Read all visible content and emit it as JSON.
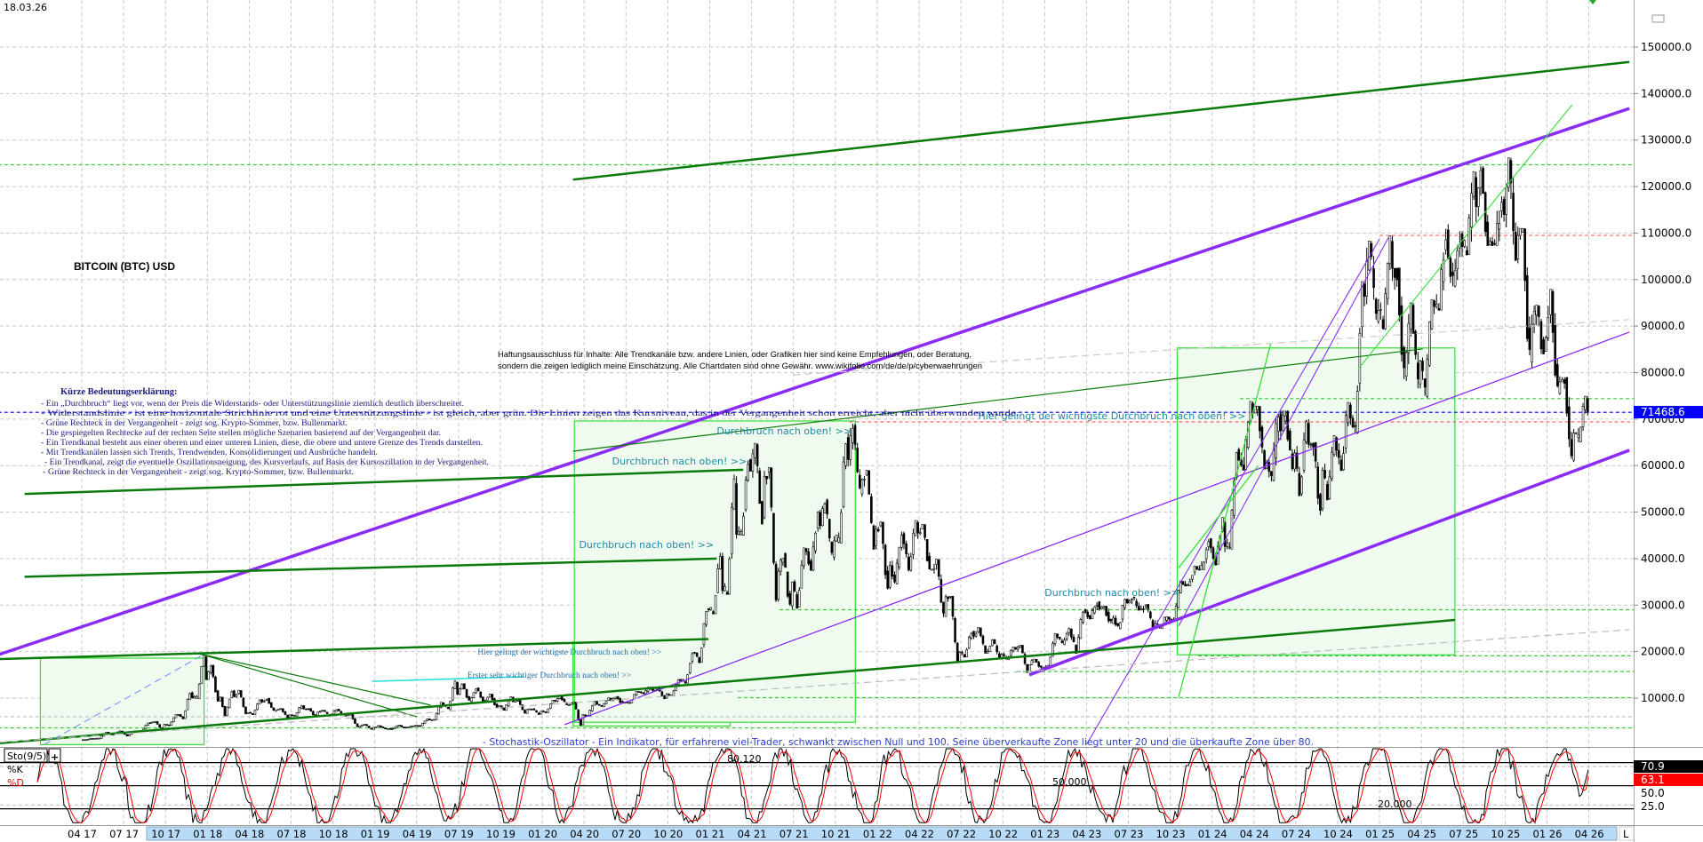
{
  "header": {
    "date": "18.03.26",
    "instrument_title": "BITCOIN (BTC) USD"
  },
  "legend": {
    "title": "Kürze Bedeutungserklärung:",
    "lines": [
      "- Ein „Durchbruch“ liegt vor, wenn der Preis die Widerstands- oder Unterstützungslinie ziemlich deutlich überschreitet.",
      "- Widerstandslinie - ist eine horizontale Strichlinie rot und eine Unterstützungslinie - ist gleich, aber grün. Die Linien zeigen das Kursniveau, das in der Vergangenheit schon erreicht, aber nicht überwunden wurde.",
      "- Grüne Rechteck in der Vergangenheit - zeigt sog. Krypto-Sommer, bzw. Bullenmarkt.",
      "- Die gespiegelten Rechtecke auf der rechten Seite stellen mögliche Szenarien basierend auf der Vergangenheit dar.",
      "- Ein Trendkanal besteht aus einer oberen und einer unteren Linien, diese, die obere und untere Grenze des Trends darstellen.",
      "- Mit Trendkanälen lassen sich Trends, Trendwenden, Konsolidierungen und Ausbrüche handeln.",
      "- Ein Trendkanal, zeigt die eventuelle Oszillationsneigung, des Kursverlaufs, auf Basis der Kursoszillation in der Vergangenheit.",
      "- Grüne Rechteck in der Vergangenheit - zeigt sog. Krypto-Sommer, bzw. Bullenmarkt."
    ]
  },
  "disclaimer": {
    "line1": "Haftungsausschluss für Inhalte: Alle Trendkanäle bzw. andere Linien, oder Grafiken hier sind keine Empfehlungen, oder Beratung,",
    "line2": "sondern die zeigen lediglich meine Einschätzung. Alle Chartdaten sind ohne Gewähr. www.wikifolio.com/de/de/p/cyberwaehrungen"
  },
  "stochastic": {
    "label": "Sto(9/5)",
    "add_button": "+",
    "k_label": "%K",
    "d_label": "%D",
    "description": "- Stochastik-Oszillator - Ein Indikator, für erfahrene viel-Trader, schwankt zwischen Null und 100. Seine überverkaufte Zone liegt unter 20 und die überkaufte Zone über 80.",
    "k_value": "70.9",
    "d_value": "63.1",
    "k_color": "#000000",
    "d_color": "#ff0000",
    "level_labels": [
      "80.120",
      "50.000",
      "20.000"
    ],
    "axis_labels": [
      "50.0",
      "25.0"
    ],
    "levels": [
      80,
      50,
      20
    ]
  },
  "axis": {
    "l_button": "L",
    "current_price": "71468.6",
    "current_price_color": "#0000ff"
  },
  "chart_data": {
    "type": "candlestick",
    "title": "BITCOIN (BTC) USD",
    "ylim": [
      0,
      150000
    ],
    "y_ticks": [
      "10000.0",
      "20000.0",
      "30000.0",
      "40000.0",
      "50000.0",
      "60000.0",
      "70000.0",
      "80000.0",
      "90000.0",
      "100000.0",
      "110000.0",
      "120000.0",
      "130000.0",
      "140000.0",
      "150000.0"
    ],
    "x_ticks": [
      "04 17",
      "07 17",
      "10 17",
      "01 18",
      "04 18",
      "07 18",
      "10 18",
      "01 19",
      "04 19",
      "07 19",
      "10 19",
      "01 20",
      "04 20",
      "07 20",
      "10 20",
      "01 21",
      "04 21",
      "07 21",
      "10 21",
      "01 22",
      "04 22",
      "07 22",
      "10 22",
      "01 23",
      "04 23",
      "07 23",
      "10 23",
      "01 24",
      "04 24",
      "07 24",
      "10 24",
      "01 25",
      "04 25",
      "07 25",
      "10 25",
      "01 26",
      "04 26"
    ],
    "grid": true,
    "candle_up_color": "#ffffff",
    "candle_down_color": "#000000",
    "months": [
      "2017-04",
      "2017-05",
      "2017-06",
      "2017-07",
      "2017-08",
      "2017-09",
      "2017-10",
      "2017-11",
      "2017-12",
      "2018-01",
      "2018-02",
      "2018-03",
      "2018-04",
      "2018-05",
      "2018-06",
      "2018-07",
      "2018-08",
      "2018-09",
      "2018-10",
      "2018-11",
      "2018-12",
      "2019-01",
      "2019-02",
      "2019-03",
      "2019-04",
      "2019-05",
      "2019-06",
      "2019-07",
      "2019-08",
      "2019-09",
      "2019-10",
      "2019-11",
      "2019-12",
      "2020-01",
      "2020-02",
      "2020-03",
      "2020-04",
      "2020-05",
      "2020-06",
      "2020-07",
      "2020-08",
      "2020-09",
      "2020-10",
      "2020-11",
      "2020-12",
      "2021-01",
      "2021-02",
      "2021-03",
      "2021-04",
      "2021-05",
      "2021-06",
      "2021-07",
      "2021-08",
      "2021-09",
      "2021-10",
      "2021-11",
      "2021-12",
      "2022-01",
      "2022-02",
      "2022-03",
      "2022-04",
      "2022-05",
      "2022-06",
      "2022-07",
      "2022-08",
      "2022-09",
      "2022-10",
      "2022-11",
      "2022-12",
      "2023-01",
      "2023-02",
      "2023-03",
      "2023-04",
      "2023-05",
      "2023-06",
      "2023-07",
      "2023-08",
      "2023-09",
      "2023-10",
      "2023-11",
      "2023-12",
      "2024-01",
      "2024-02",
      "2024-03",
      "2024-04",
      "2024-05",
      "2024-06",
      "2024-07",
      "2024-08",
      "2024-09",
      "2024-10",
      "2024-11",
      "2024-12",
      "2025-01",
      "2025-02",
      "2025-03",
      "2025-04",
      "2025-05",
      "2025-06",
      "2025-07",
      "2025-08",
      "2025-09",
      "2025-10",
      "2025-11",
      "2025-12",
      "2026-01",
      "2026-02",
      "2026-03"
    ],
    "close": [
      1350,
      2300,
      2500,
      2870,
      4700,
      4340,
      6450,
      10000,
      14000,
      10200,
      10300,
      6900,
      9200,
      7500,
      6400,
      7700,
      7000,
      6600,
      6300,
      4000,
      3700,
      3450,
      3800,
      4100,
      5300,
      8550,
      10800,
      10100,
      9600,
      8300,
      9200,
      7550,
      7200,
      9350,
      8550,
      6400,
      8650,
      9450,
      9150,
      11350,
      11650,
      10800,
      13800,
      19700,
      29000,
      33100,
      45200,
      58800,
      57700,
      37300,
      35000,
      41500,
      47100,
      43800,
      61300,
      57000,
      46300,
      38500,
      43200,
      45500,
      37700,
      31800,
      19900,
      23300,
      20000,
      19400,
      20500,
      17200,
      16500,
      23100,
      23100,
      28500,
      29200,
      27200,
      30500,
      29200,
      26000,
      27000,
      34500,
      37700,
      42300,
      42600,
      61200,
      71300,
      60700,
      67500,
      62700,
      64600,
      59000,
      63300,
      70200,
      96400,
      93400,
      102400,
      84300,
      82500,
      94200,
      104600,
      107100,
      115700,
      108200,
      114000,
      109500,
      90400,
      87500,
      78000,
      67000,
      71468.6
    ],
    "high": [
      1350,
      2760,
      2980,
      2920,
      4740,
      4980,
      6470,
      11400,
      19800,
      17200,
      11800,
      11700,
      9770,
      10000,
      7760,
      8500,
      7770,
      7400,
      7680,
      6550,
      4380,
      4100,
      4200,
      4130,
      5600,
      9100,
      13900,
      13200,
      12300,
      10900,
      10350,
      9500,
      7750,
      9600,
      10500,
      9200,
      9450,
      10070,
      10400,
      11450,
      12480,
      12100,
      14100,
      19900,
      29300,
      41900,
      58300,
      61800,
      64800,
      59600,
      41300,
      42300,
      50500,
      52900,
      67000,
      69000,
      59000,
      47900,
      45800,
      48200,
      47400,
      39900,
      31900,
      24600,
      25200,
      22700,
      21000,
      21400,
      18400,
      23900,
      25200,
      29200,
      31000,
      29800,
      31400,
      31800,
      30200,
      27500,
      35200,
      38400,
      44700,
      48900,
      63900,
      73800,
      72800,
      71900,
      71900,
      70000,
      65000,
      66500,
      73600,
      99600,
      108300,
      109400,
      102500,
      95000,
      95700,
      111900,
      110400,
      123200,
      124400,
      117900,
      126200,
      111000,
      94500,
      97900,
      79000,
      75000
    ],
    "low": [
      1070,
      1350,
      2200,
      1840,
      2700,
      3000,
      4120,
      5540,
      9900,
      9200,
      6000,
      6600,
      6450,
      7050,
      5750,
      6070,
      5880,
      6120,
      6180,
      3650,
      3160,
      3350,
      3400,
      3700,
      4060,
      5330,
      7450,
      9100,
      9400,
      7800,
      7300,
      6530,
      6450,
      6850,
      8450,
      3850,
      6150,
      8100,
      8850,
      8950,
      10900,
      9850,
      10400,
      13200,
      17600,
      28100,
      32300,
      45000,
      47000,
      30000,
      28800,
      29300,
      37300,
      39600,
      43300,
      53300,
      42000,
      32900,
      34300,
      37200,
      37600,
      26700,
      17600,
      18800,
      19600,
      18200,
      18200,
      15500,
      16300,
      16500,
      21400,
      19600,
      27000,
      25800,
      24800,
      28900,
      25200,
      24900,
      26600,
      34100,
      37600,
      38600,
      42000,
      59000,
      59200,
      56600,
      58600,
      53500,
      49100,
      52600,
      58900,
      66800,
      90500,
      89200,
      78200,
      76600,
      74500,
      93400,
      98300,
      105300,
      107300,
      107300,
      103500,
      80600,
      84000,
      75000,
      60000,
      65000
    ],
    "trend_lines": [
      {
        "from": [
          "2016-10-04",
          19400
        ],
        "to": [
          "2026-06-28",
          136800
        ],
        "color": "#8b2cf5",
        "width": 3.5
      },
      {
        "from": [
          "2022-11-28",
          15000
        ],
        "to": [
          "2026-06-28",
          63300
        ],
        "color": "#8b2cf5",
        "width": 3.5
      },
      {
        "from": [
          "2020-02-19",
          4300
        ],
        "to": [
          "2026-06-28",
          88700
        ],
        "color": "#8b2cf5",
        "width": 1.3
      },
      {
        "from": [
          "2023-04-01",
          0
        ],
        "to": [
          "2025-01-01",
          108700
        ],
        "color": "#8b2cf5",
        "width": 1.1
      },
      {
        "from": [
          "2023-10-19",
          25500
        ],
        "to": [
          "2025-01-20",
          109000
        ],
        "color": "#8b2cf5",
        "width": 1.1
      },
      {
        "from": [
          "2020-03-07",
          121500
        ],
        "to": [
          "2026-06-28",
          146800
        ],
        "color": "#0a7a0a",
        "width": 2.5
      },
      {
        "from": [
          "2016-11-28",
          53900
        ],
        "to": [
          "2021-03-13",
          59100
        ],
        "color": "#0a7a0a",
        "width": 2.5
      },
      {
        "from": [
          "2016-11-28",
          36100
        ],
        "to": [
          "2021-01-16",
          40000
        ],
        "color": "#0a7a0a",
        "width": 2.5
      },
      {
        "from": [
          "2016-10-04",
          18400
        ],
        "to": [
          "2020-12-28",
          22700
        ],
        "color": "#0a7a0a",
        "width": 2.5
      },
      {
        "from": [
          "2016-10-04",
          300
        ],
        "to": [
          "2025-06-13",
          26800
        ],
        "color": "#0a7a0a",
        "width": 2.5
      },
      {
        "from": [
          "2020-03-07",
          63100
        ],
        "to": [
          "2025-04-04",
          85100
        ],
        "color": "#0a7a0a",
        "width": 1.2
      },
      {
        "from": [
          "2017-12-15",
          19500
        ],
        "to": [
          "2019-04-01",
          6000
        ],
        "color": "#0a7a0a",
        "width": 1.2
      },
      {
        "from": [
          "2017-12-15",
          19500
        ],
        "to": [
          "2019-05-01",
          8500
        ],
        "color": "#0a7a0a",
        "width": 1.2
      },
      {
        "from": [
          "2023-10-19",
          10200
        ],
        "to": [
          "2024-05-07",
          86200
        ],
        "color": "#33dd33",
        "width": 1.3
      },
      {
        "from": [
          "2023-10-19",
          38000
        ],
        "to": [
          "2024-04-10",
          60000
        ],
        "color": "#33dd33",
        "width": 1.3
      },
      {
        "from": [
          "2024-11-16",
          80900
        ],
        "to": [
          "2026-02-25",
          137600
        ],
        "color": "#33dd33",
        "width": 1.1
      },
      {
        "from": [
          "2018-12-25",
          13600
        ],
        "to": [
          "2019-11-22",
          14600
        ],
        "color": "#22dddd",
        "width": 1.5
      },
      {
        "from": [
          "2017-01-10",
          0
        ],
        "to": [
          "2017-12-25",
          19500
        ],
        "color": "#6a8cff",
        "width": 1,
        "dash": true
      },
      {
        "from": [
          "2016-10-04",
          500
        ],
        "to": [
          "2026-06-28",
          24700
        ],
        "color": "#bbbbbb",
        "width": 1.2,
        "dash": true
      },
      {
        "from": [
          "2021-07-01",
          79500
        ],
        "to": [
          "2026-06-28",
          91400
        ],
        "color": "#cccccc",
        "width": 1.2,
        "dash": true
      }
    ],
    "rectangles": [
      {
        "from": "2017-01-02",
        "to": "2017-12-24",
        "top": 18600,
        "bottom": 0
      },
      {
        "from": "2020-03-07",
        "to": "2021-02-15",
        "top": 22100,
        "bottom": 4000
      },
      {
        "from": "2020-03-10",
        "to": "2021-11-14",
        "top": 69600,
        "bottom": 4800
      },
      {
        "from": "2023-10-16",
        "to": "2025-06-13",
        "top": 85300,
        "bottom": 19300
      }
    ],
    "horizontal_levels": [
      {
        "price": 124700,
        "from": "2016-10-01",
        "color": "#33cc33"
      },
      {
        "price": 109500,
        "from": "2025-01-01",
        "color": "#ff6666"
      },
      {
        "price": 74400,
        "from": "2024-03-01",
        "color": "#33cc33"
      },
      {
        "price": 69400,
        "from": "2021-11-01",
        "color": "#ff6666"
      },
      {
        "price": 71468.6,
        "from": "2016-10-01",
        "color": "#0000ff"
      },
      {
        "price": 29000,
        "from": "2021-06-01",
        "color": "#33cc33"
      },
      {
        "price": 19100,
        "from": "2023-12-01",
        "color": "#33cc33"
      },
      {
        "price": 15700,
        "from": "2022-11-01",
        "color": "#33cc33"
      },
      {
        "price": 10100,
        "from": "2021-03-01",
        "color": "#33cc33"
      },
      {
        "price": 6000,
        "from": "2016-10-01",
        "color": "#bbbbbb"
      },
      {
        "price": 3600,
        "from": "2016-10-01",
        "color": "#33cc33"
      }
    ],
    "annotations": [
      {
        "text": "Durchbruch nach oben! >>",
        "at": [
          "2021-01-16",
          66700
        ],
        "style": "big"
      },
      {
        "text": "Durchbruch nach oben! >>",
        "at": [
          "2020-06-01",
          60200
        ],
        "style": "big"
      },
      {
        "text": "Durchbruch nach oben! >>",
        "at": [
          "2020-03-20",
          42300
        ],
        "style": "big"
      },
      {
        "text": "Durchbruch nach oben! >>",
        "at": [
          "2023-01-01",
          32000
        ],
        "style": "big"
      },
      {
        "text": "Hier gelingt der wichtigste Durchbruch nach oben! >>",
        "at": [
          "2022-08-08",
          70000
        ],
        "style": "big"
      },
      {
        "text": "Hier gelingt der wichtigste Durchbruch nach oben! >>",
        "at": [
          "2019-08-12",
          19400
        ],
        "style": "small"
      },
      {
        "text": "Erster sehr wichtiger Durchbruch nach oben! >>",
        "at": [
          "2019-07-20",
          14400
        ],
        "style": "small"
      }
    ]
  }
}
